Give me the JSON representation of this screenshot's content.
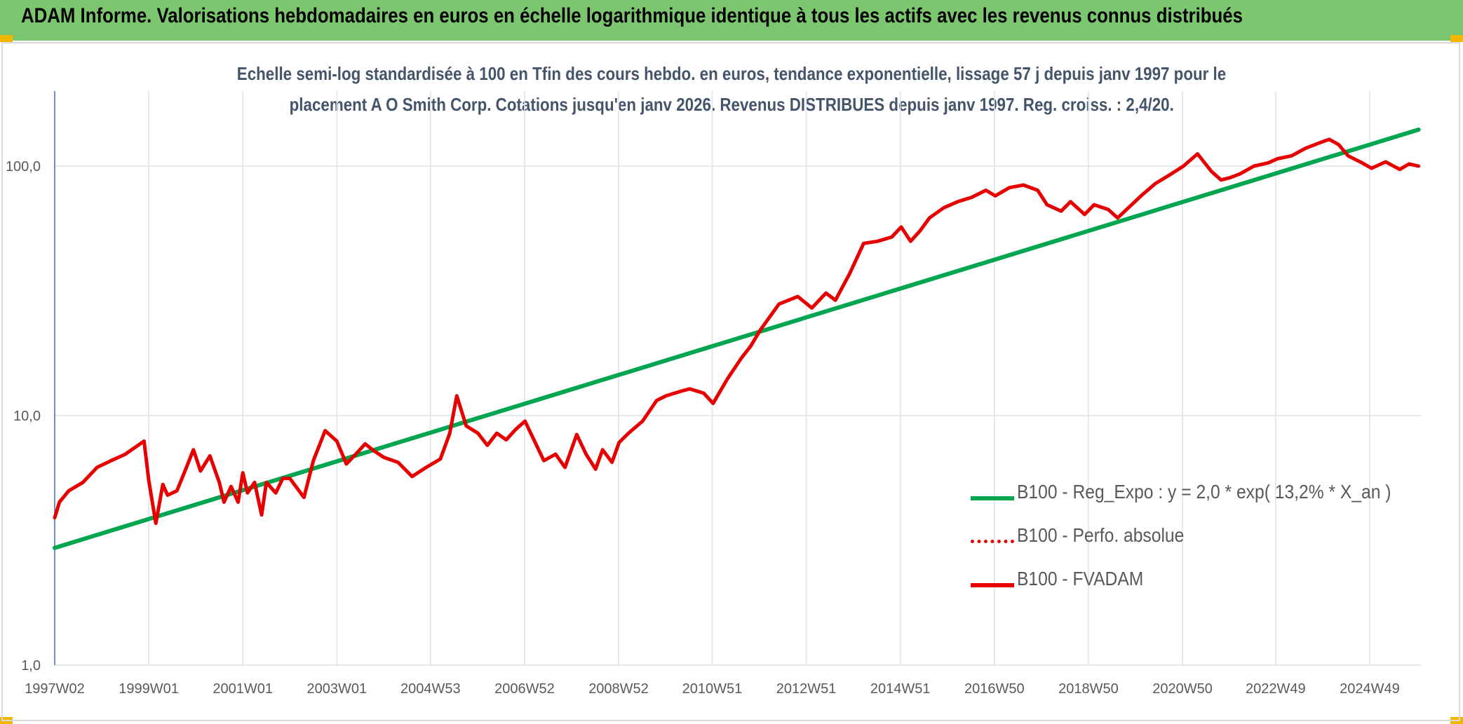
{
  "banner": {
    "title": "ADAM Informe. Valorisations hebdomadaires en euros en échelle logarithmique identique à tous les actifs avec les revenus connus distribués"
  },
  "colors": {
    "banner_bg": "#7cc66f",
    "corner_accent": "#f2b800",
    "trend_line": "#00a550",
    "fvadam_line": "#e60000",
    "subtitle_text": "#44546a"
  },
  "chart_data": {
    "type": "line",
    "title_line1": "Echelle semi-log standardisée à 100 en Tfin des cours hebdo. en euros, tendance exponentielle, lissage 57 j depuis janv 1997 pour le",
    "title_line2": "placement A O Smith Corp. Cotations jusqu'en janv 2026. Revenus DISTRIBUES depuis janv 1997. Reg. croiss. : 2,4/20.",
    "y_scale": "log",
    "ylim": [
      1,
      200
    ],
    "y_ticks": [
      1,
      10,
      100
    ],
    "y_tick_labels": [
      "1,0",
      "10,0",
      "100,0"
    ],
    "xlim": [
      1997.0,
      2026.05
    ],
    "x_ticks": [
      1997.0,
      1999.0,
      2001.0,
      2003.0,
      2004.99,
      2006.99,
      2008.99,
      2010.98,
      2012.98,
      2014.98,
      2016.98,
      2018.98,
      2020.98,
      2022.96,
      2024.96
    ],
    "x_tick_labels": [
      "1997W02",
      "1999W01",
      "2001W01",
      "2003W01",
      "2004W53",
      "2006W52",
      "2008W52",
      "2010W51",
      "2012W51",
      "2014W51",
      "2016W50",
      "2018W50",
      "2020W50",
      "2022W49",
      "2024W49"
    ],
    "grid": "vertical and horizontal",
    "legend_position": "lower-right",
    "series": [
      {
        "name": "B100 - Reg_Expo : y = 2,0 * exp( 13,2% *  X_an )",
        "style": "solid",
        "color": "#00a550",
        "x": [
          1997.0,
          2026.0
        ],
        "y": [
          2.95,
          140
        ]
      },
      {
        "name": "B100 - Perfo. absolue",
        "style": "dotted",
        "color": "#e60000",
        "x": [],
        "y": []
      },
      {
        "name": "B100 - FVADAM",
        "style": "solid",
        "color": "#e60000",
        "x": [
          1997.0,
          1997.1,
          1997.3,
          1997.6,
          1997.9,
          1998.2,
          1998.5,
          1998.9,
          1999.0,
          1999.15,
          1999.3,
          1999.4,
          1999.6,
          1999.8,
          1999.95,
          2000.1,
          2000.3,
          2000.5,
          2000.6,
          2000.75,
          2000.9,
          2001.0,
          2001.1,
          2001.25,
          2001.4,
          2001.5,
          2001.7,
          2001.85,
          2002.0,
          2002.3,
          2002.5,
          2002.75,
          2003.0,
          2003.2,
          2003.4,
          2003.6,
          2003.8,
          2004.0,
          2004.3,
          2004.6,
          2004.9,
          2005.2,
          2005.4,
          2005.55,
          2005.75,
          2006.0,
          2006.2,
          2006.4,
          2006.6,
          2006.8,
          2007.0,
          2007.4,
          2007.65,
          2007.85,
          2008.1,
          2008.3,
          2008.5,
          2008.65,
          2008.85,
          2009.0,
          2009.2,
          2009.5,
          2009.8,
          2010.0,
          2010.3,
          2010.5,
          2010.8,
          2011.0,
          2011.3,
          2011.6,
          2011.8,
          2012.0,
          2012.4,
          2012.8,
          2013.1,
          2013.4,
          2013.6,
          2013.9,
          2014.2,
          2014.5,
          2014.8,
          2015.0,
          2015.2,
          2015.4,
          2015.6,
          2015.9,
          2016.2,
          2016.5,
          2016.8,
          2017.0,
          2017.3,
          2017.6,
          2017.9,
          2018.1,
          2018.4,
          2018.6,
          2018.9,
          2019.1,
          2019.4,
          2019.6,
          2019.9,
          2020.1,
          2020.4,
          2020.7,
          2021.0,
          2021.3,
          2021.6,
          2021.8,
          2022.0,
          2022.2,
          2022.5,
          2022.8,
          2023.0,
          2023.3,
          2023.6,
          2023.9,
          2024.1,
          2024.3,
          2024.5,
          2024.8,
          2025.0,
          2025.3,
          2025.6,
          2025.8,
          2026.0
        ],
        "y": [
          3.9,
          4.5,
          5.0,
          5.4,
          6.2,
          6.6,
          7.0,
          7.9,
          5.5,
          3.7,
          5.3,
          4.8,
          5.0,
          6.2,
          7.3,
          6.0,
          6.9,
          5.4,
          4.5,
          5.2,
          4.5,
          5.9,
          4.9,
          5.4,
          4.0,
          5.4,
          4.9,
          5.6,
          5.6,
          4.7,
          6.6,
          8.7,
          7.9,
          6.4,
          7.0,
          7.7,
          7.2,
          6.8,
          6.5,
          5.7,
          6.2,
          6.7,
          8.5,
          12.0,
          9.1,
          8.5,
          7.6,
          8.5,
          8.0,
          8.8,
          9.5,
          6.6,
          7.0,
          6.2,
          8.4,
          7.0,
          6.1,
          7.3,
          6.5,
          7.8,
          8.5,
          9.5,
          11.5,
          12.0,
          12.5,
          12.8,
          12.3,
          11.2,
          14.0,
          17.0,
          19.0,
          22.0,
          28.0,
          30.0,
          27.0,
          31.0,
          29.0,
          37.0,
          49.0,
          50.0,
          52.0,
          57.0,
          50.0,
          55.0,
          62.0,
          68.0,
          72.0,
          75.0,
          80.0,
          76.0,
          82.0,
          84.0,
          80.0,
          70.0,
          66.0,
          72.0,
          64.0,
          70.0,
          67.0,
          62.0,
          70.0,
          76.0,
          85.0,
          92.0,
          100.0,
          112.0,
          95.0,
          88.0,
          90.0,
          93.0,
          100.0,
          103.0,
          107.0,
          110.0,
          118.0,
          124.0,
          128.0,
          122.0,
          110.0,
          103.0,
          98.0,
          104.0,
          97.0,
          102.0,
          100.0
        ]
      }
    ]
  }
}
